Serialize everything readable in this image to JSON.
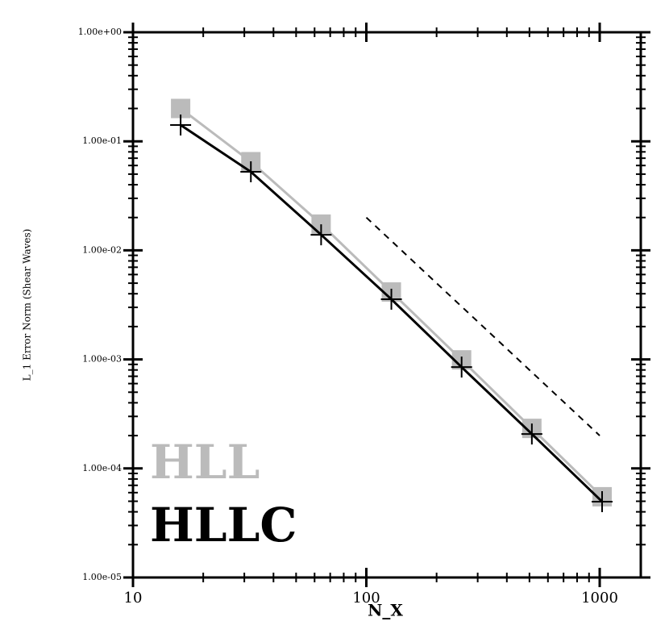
{
  "chart_data": {
    "type": "line",
    "xlabel": "N_X",
    "ylabel": "L_1 Error Norm (Shear Waves)",
    "log_x": true,
    "log_y": true,
    "xlim": [
      10,
      1500
    ],
    "ylim": [
      1e-05,
      1
    ],
    "xticks": [
      10,
      100,
      1000
    ],
    "yticks": [
      {
        "value": 1e-05,
        "label": "1.00e-05"
      },
      {
        "value": 0.0001,
        "label": "1.00e-04"
      },
      {
        "value": 0.001,
        "label": "1.00e-03"
      },
      {
        "value": 0.01,
        "label": "1.00e-02"
      },
      {
        "value": 0.1,
        "label": "1.00e-01"
      },
      {
        "value": 1,
        "label": "1.00e+00"
      }
    ],
    "series": [
      {
        "name": "HLL",
        "color": "#bbbbbb",
        "marker": "square",
        "x": [
          16,
          32,
          64,
          128,
          256,
          512,
          1024
        ],
        "values": [
          0.2,
          0.065,
          0.0174,
          0.00415,
          0.00099,
          0.000233,
          5.5e-05
        ]
      },
      {
        "name": "HLLC",
        "color": "#000000",
        "marker": "plus",
        "x": [
          16,
          32,
          64,
          128,
          256,
          512,
          1024
        ],
        "values": [
          0.141,
          0.0525,
          0.0139,
          0.00356,
          0.00085,
          0.000207,
          4.96e-05
        ]
      },
      {
        "color": "#000000",
        "dashed": true,
        "x": [
          100,
          1000
        ],
        "values": [
          0.02,
          0.0002
        ]
      }
    ]
  }
}
